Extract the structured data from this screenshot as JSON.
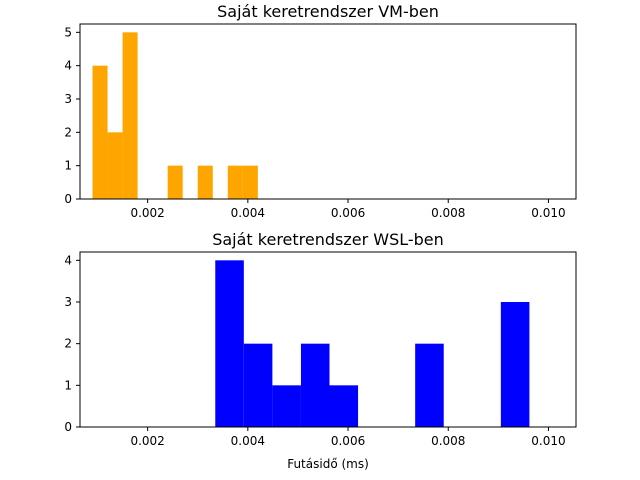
{
  "chart_data": [
    {
      "type": "histogram",
      "title": "Saját keretrendszer VM-ben",
      "color": "#ffa500",
      "xlim": [
        0.00065,
        0.01055
      ],
      "ylim": [
        0,
        5.25
      ],
      "xticks": [
        0.002,
        0.004,
        0.006,
        0.008,
        0.01
      ],
      "xtick_labels": [
        "0.002",
        "0.004",
        "0.006",
        "0.008",
        "0.010"
      ],
      "yticks": [
        0,
        1,
        2,
        3,
        4,
        5
      ],
      "ytick_labels": [
        "0",
        "1",
        "2",
        "3",
        "4",
        "5"
      ],
      "xlabel": "",
      "bins": [
        {
          "x0": 0.0009,
          "x1": 0.0012,
          "count": 4
        },
        {
          "x0": 0.0012,
          "x1": 0.0015,
          "count": 2
        },
        {
          "x0": 0.0015,
          "x1": 0.0018,
          "count": 5
        },
        {
          "x0": 0.0024,
          "x1": 0.0027,
          "count": 1
        },
        {
          "x0": 0.003,
          "x1": 0.0033,
          "count": 1
        },
        {
          "x0": 0.0036,
          "x1": 0.0039,
          "count": 1
        },
        {
          "x0": 0.0039,
          "x1": 0.0042,
          "count": 1
        }
      ]
    },
    {
      "type": "histogram",
      "title": "Saját keretrendszer WSL-ben",
      "color": "#0000ff",
      "xlim": [
        0.00065,
        0.01055
      ],
      "ylim": [
        0,
        4.2
      ],
      "xticks": [
        0.002,
        0.004,
        0.006,
        0.008,
        0.01
      ],
      "xtick_labels": [
        "0.002",
        "0.004",
        "0.006",
        "0.008",
        "0.010"
      ],
      "yticks": [
        0,
        1,
        2,
        3,
        4
      ],
      "ytick_labels": [
        "0",
        "1",
        "2",
        "3",
        "4"
      ],
      "xlabel": "Futásidő (ms)",
      "bins": [
        {
          "x0": 0.00335,
          "x1": 0.00392,
          "count": 4
        },
        {
          "x0": 0.00392,
          "x1": 0.00449,
          "count": 2
        },
        {
          "x0": 0.00449,
          "x1": 0.00506,
          "count": 1
        },
        {
          "x0": 0.00506,
          "x1": 0.00563,
          "count": 2
        },
        {
          "x0": 0.00563,
          "x1": 0.0062,
          "count": 1
        },
        {
          "x0": 0.00734,
          "x1": 0.00791,
          "count": 2
        },
        {
          "x0": 0.00905,
          "x1": 0.00962,
          "count": 3
        }
      ]
    }
  ]
}
